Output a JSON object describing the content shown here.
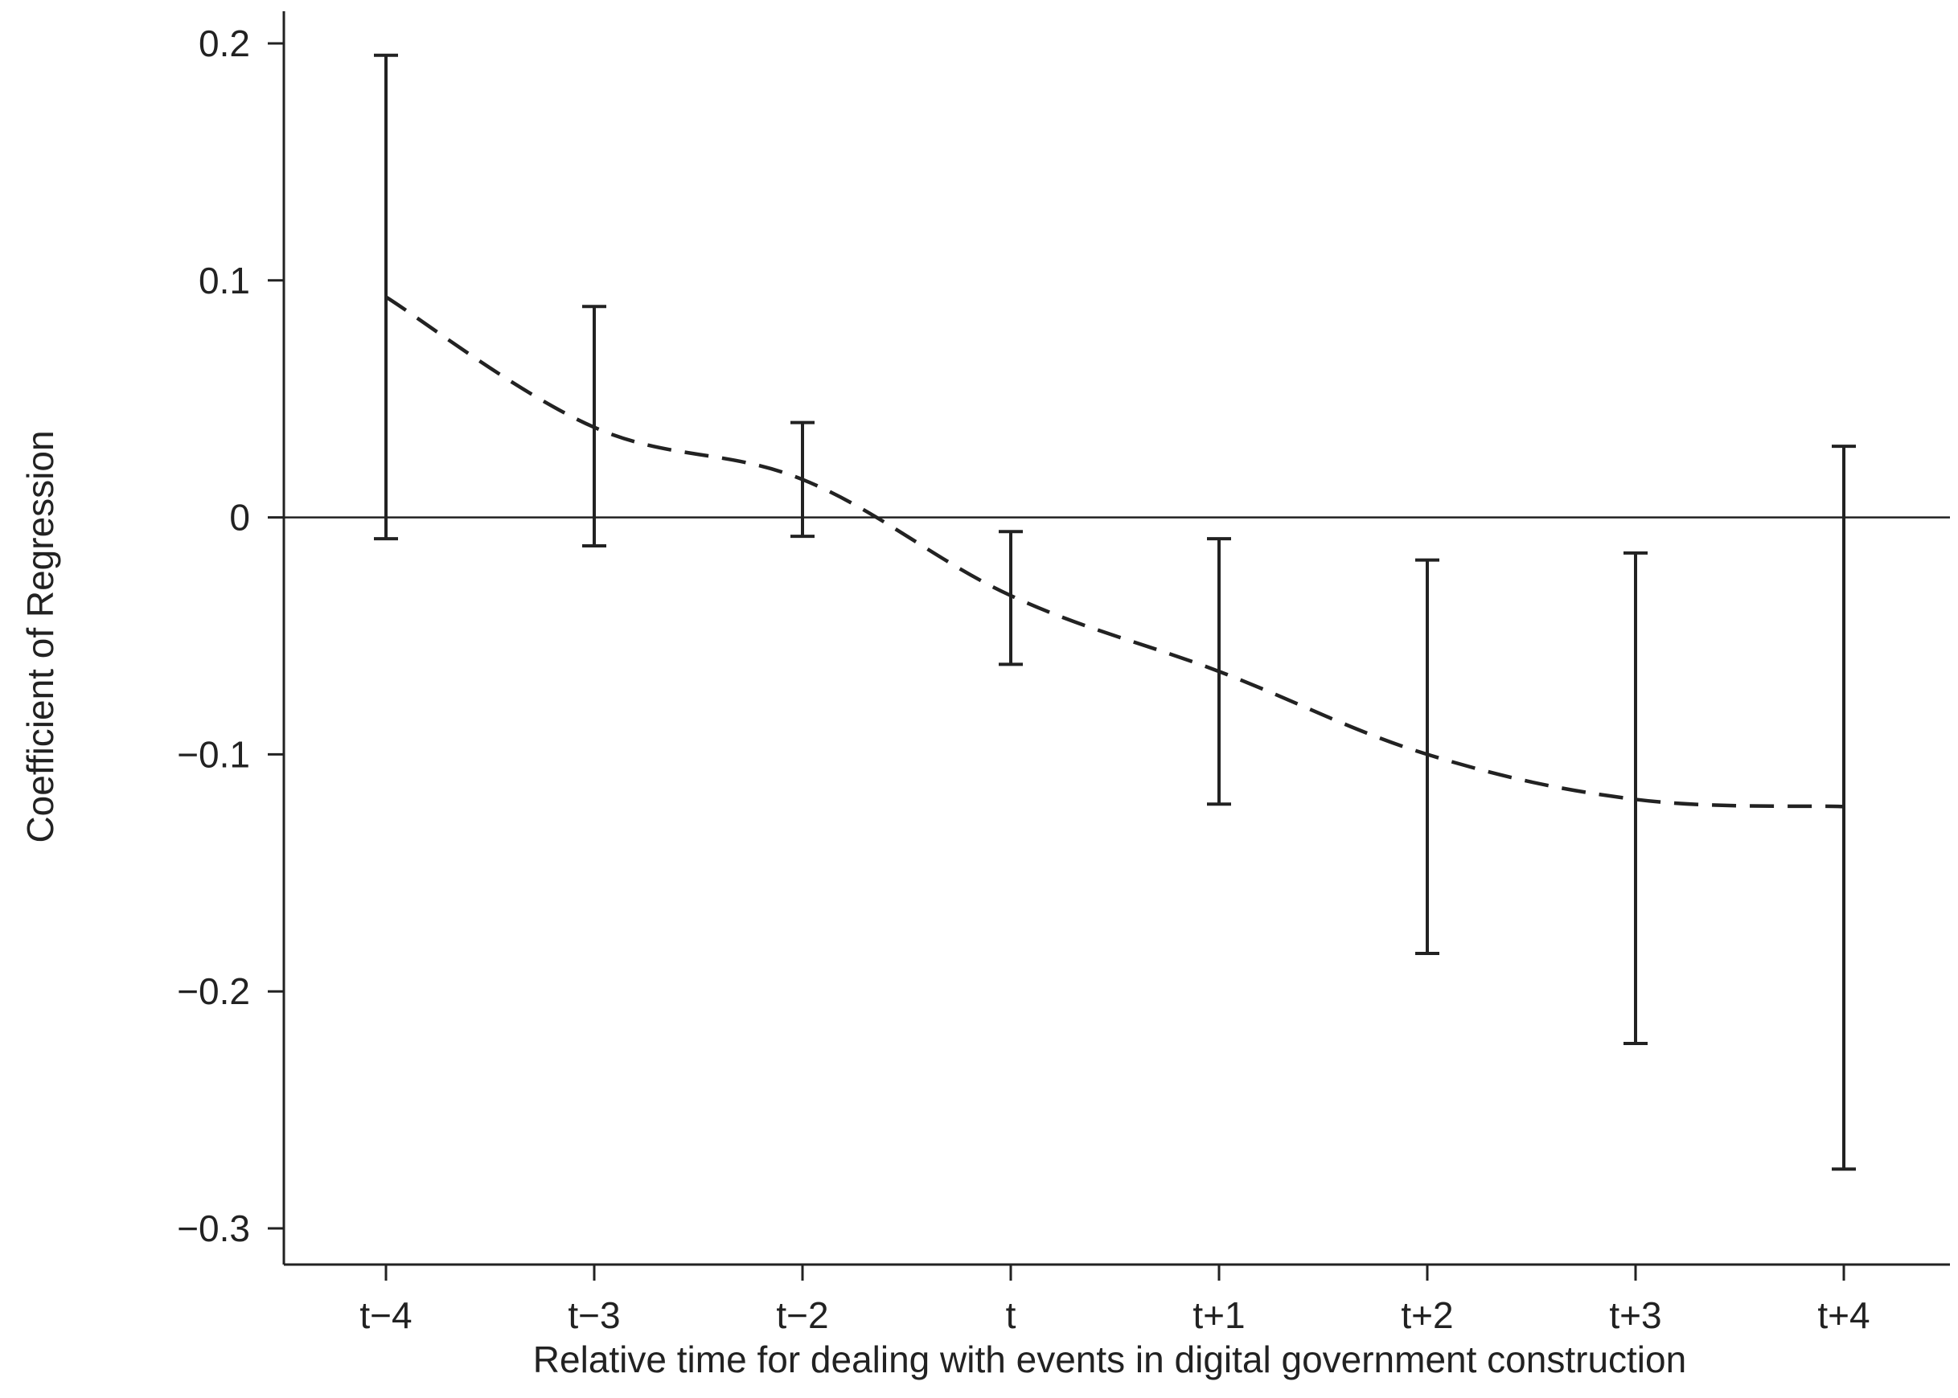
{
  "chart_data": {
    "type": "line",
    "title": "",
    "xlabel": "Relative time for dealing with events in digital government construction",
    "ylabel": "Coefficient of Regression",
    "categories": [
      "t−4",
      "t−3",
      "t−2",
      "t",
      "t+1",
      "t+2",
      "t+3",
      "t+4"
    ],
    "series": [
      {
        "values": [
          0.093,
          0.038,
          0.016,
          -0.033,
          -0.065,
          -0.1,
          -0.119,
          -0.122
        ],
        "ci_low": [
          -0.009,
          -0.012,
          -0.008,
          -0.062,
          -0.121,
          -0.184,
          -0.222,
          -0.275
        ],
        "ci_high": [
          0.195,
          0.089,
          0.04,
          -0.006,
          -0.009,
          -0.018,
          -0.015,
          0.03
        ],
        "line_style": "dashed",
        "error_bars": true
      }
    ],
    "yticks": [
      0.2,
      0.1,
      0,
      -0.1,
      -0.2,
      -0.3
    ],
    "ytick_labels": [
      "0.2",
      "0.1",
      "0",
      "−0.1",
      "−0.2",
      "−0.3"
    ],
    "ylim": [
      -0.315,
      0.215
    ],
    "reference_line_y": 0,
    "grid": false,
    "legend": "none",
    "colors": {
      "line": "#222222",
      "axis": "#222222",
      "background": "#ffffff"
    }
  }
}
